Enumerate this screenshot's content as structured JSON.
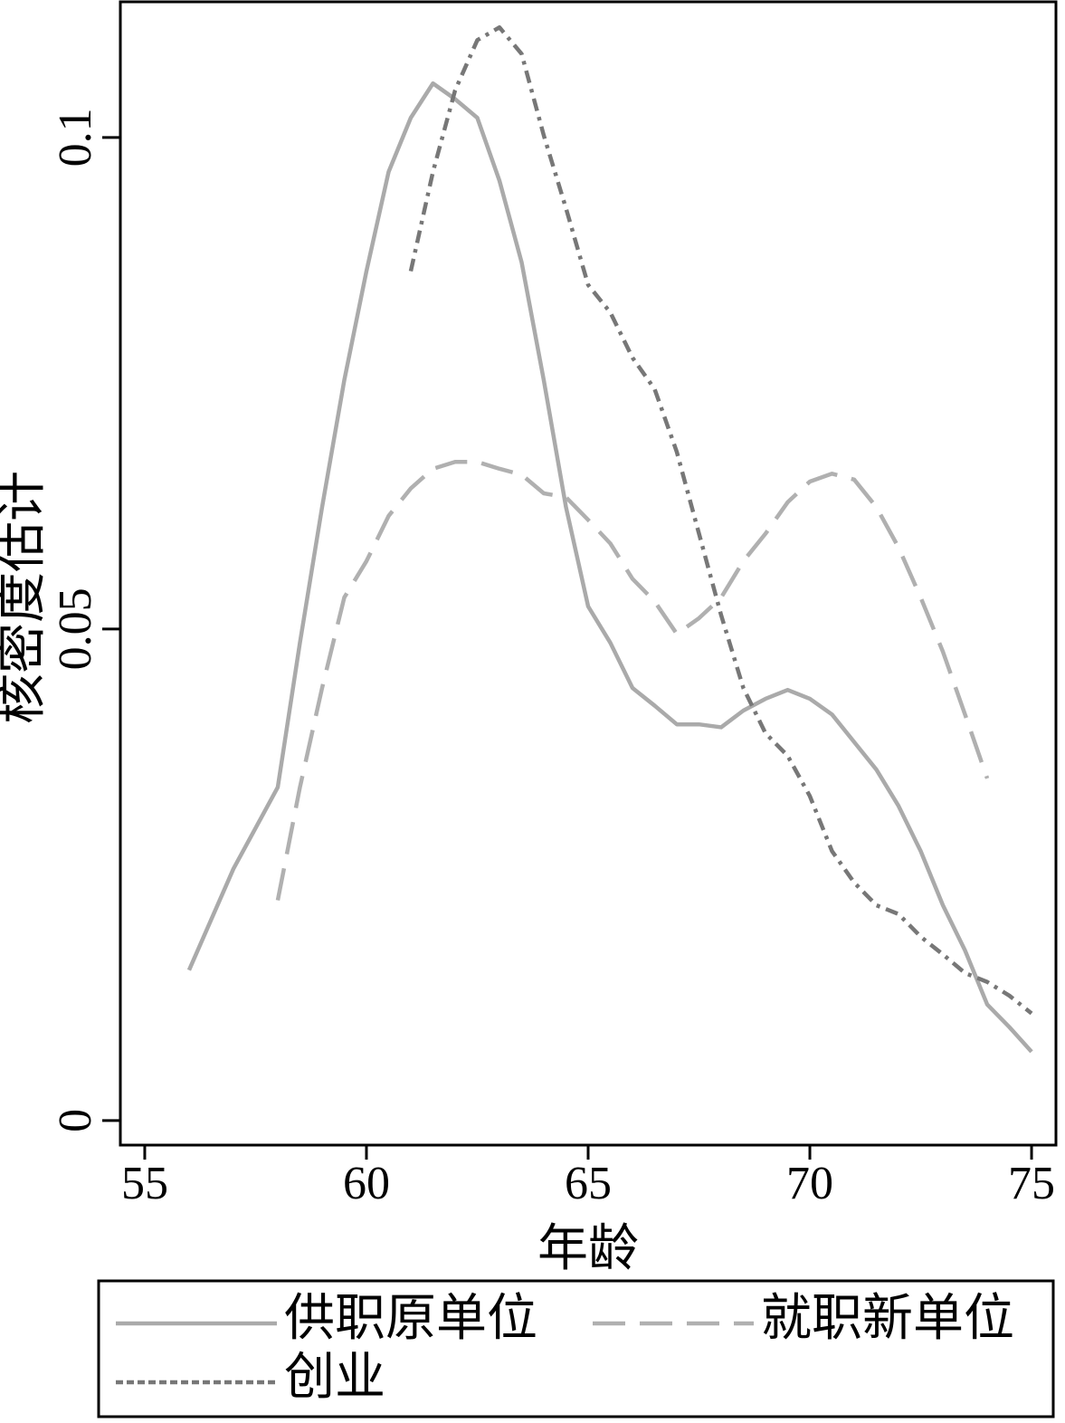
{
  "chart_data": {
    "type": "line",
    "xlabel": "年龄",
    "ylabel": "核密度估计",
    "xlim": [
      54.45,
      75.55
    ],
    "ylim": [
      -0.0025,
      0.1138
    ],
    "xticks": [
      55,
      60,
      65,
      70,
      75
    ],
    "yticks": [
      0,
      0.05,
      0.1
    ],
    "series": [
      {
        "name": "供职原单位",
        "color": "#aaaaaa",
        "linestyle": "solid",
        "x": [
          56,
          57,
          58,
          58.5,
          59,
          59.5,
          60,
          60.5,
          61,
          61.5,
          62,
          62.5,
          63,
          63.5,
          64,
          64.5,
          65,
          65.5,
          66,
          66.5,
          67,
          67.5,
          68,
          68.5,
          69,
          69.5,
          70,
          70.5,
          71,
          71.5,
          72,
          72.5,
          73,
          73.5,
          74,
          74.5,
          75
        ],
        "values": [
          0.0153,
          0.0256,
          0.0339,
          0.0486,
          0.0624,
          0.0753,
          0.0864,
          0.0965,
          0.102,
          0.1055,
          0.1039,
          0.102,
          0.0956,
          0.0873,
          0.0753,
          0.0624,
          0.0523,
          0.0486,
          0.044,
          0.0422,
          0.0403,
          0.0403,
          0.04,
          0.0417,
          0.0429,
          0.0438,
          0.0429,
          0.0413,
          0.0385,
          0.0357,
          0.032,
          0.0274,
          0.0219,
          0.0173,
          0.0118,
          0.0095,
          0.007
        ]
      },
      {
        "name": "就职新单位",
        "color": "#b0b0b0",
        "linestyle": "dashed",
        "x": [
          58,
          58.5,
          59,
          59.5,
          60,
          60.5,
          61,
          61.5,
          62,
          62.5,
          63,
          63.5,
          64,
          64.5,
          65,
          65.5,
          66,
          66.5,
          67,
          67.5,
          68,
          68.5,
          69,
          69.5,
          70,
          70.5,
          71,
          71.5,
          72,
          72.5,
          73,
          73.5,
          74
        ],
        "values": [
          0.0224,
          0.0339,
          0.044,
          0.0532,
          0.0569,
          0.0615,
          0.0643,
          0.0663,
          0.067,
          0.067,
          0.0663,
          0.0657,
          0.0638,
          0.0634,
          0.0611,
          0.0587,
          0.0551,
          0.0528,
          0.0495,
          0.0511,
          0.0532,
          0.0569,
          0.0597,
          0.0629,
          0.065,
          0.0658,
          0.0652,
          0.0624,
          0.0583,
          0.0532,
          0.0477,
          0.0413,
          0.0348
        ]
      },
      {
        "name": "创业",
        "color": "#777777",
        "linestyle": "dashdot",
        "x": [
          61,
          61.5,
          62,
          62.5,
          63,
          63.5,
          64,
          64.5,
          65,
          65.5,
          66,
          66.5,
          67,
          67.5,
          68,
          68.5,
          69,
          69.5,
          70,
          70.5,
          71,
          71.5,
          72,
          72.5,
          73,
          73.5,
          74,
          74.5,
          75
        ],
        "values": [
          0.0864,
          0.0965,
          0.1048,
          0.1099,
          0.1112,
          0.1085,
          0.1002,
          0.0928,
          0.085,
          0.0822,
          0.0776,
          0.0744,
          0.068,
          0.0597,
          0.0514,
          0.044,
          0.0394,
          0.0371,
          0.033,
          0.0274,
          0.0242,
          0.0219,
          0.021,
          0.0187,
          0.0169,
          0.015,
          0.0141,
          0.0127,
          0.0109
        ]
      }
    ]
  }
}
